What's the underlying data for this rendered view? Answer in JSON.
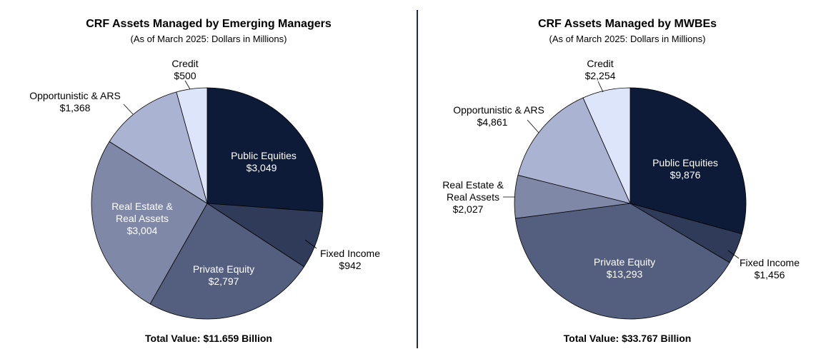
{
  "chart_data": [
    {
      "type": "pie",
      "title": "CRF Assets Managed by Emerging Managers",
      "subtitle": "(As of March 2025: Dollars in Millions)",
      "footer": "Total Value: $11.659 Billion",
      "slices": [
        {
          "name": "Public Equities",
          "label_value": "$3,049",
          "value": 3049,
          "color": "#0e1b38"
        },
        {
          "name": "Fixed Income",
          "label_value": "$942",
          "value": 942,
          "color": "#2f3b59"
        },
        {
          "name": "Private Equity",
          "label_value": "$2,797",
          "value": 2797,
          "color": "#545e7e"
        },
        {
          "name": "Real Estate & Real Assets",
          "label_value": "$3,004",
          "value": 3004,
          "color": "#7f88a6"
        },
        {
          "name": "Opportunistic & ARS",
          "label_value": "$1,368",
          "value": 1368,
          "color": "#aab3d1"
        },
        {
          "name": "Credit",
          "label_value": "$500",
          "value": 500,
          "color": "#dde5fb"
        }
      ]
    },
    {
      "type": "pie",
      "title": "CRF Assets Managed by MWBEs",
      "subtitle": "(As of March 2025: Dollars in Millions)",
      "footer": "Total Value: $33.767 Billion",
      "slices": [
        {
          "name": "Public Equities",
          "label_value": "$9,876",
          "value": 9876,
          "color": "#0e1b38"
        },
        {
          "name": "Fixed Income",
          "label_value": "$1,456",
          "value": 1456,
          "color": "#2f3b59"
        },
        {
          "name": "Private Equity",
          "label_value": "$13,293",
          "value": 13293,
          "color": "#545e7e"
        },
        {
          "name": "Real Estate & Real Assets",
          "label_value": "$2,027",
          "value": 2027,
          "color": "#7f88a6"
        },
        {
          "name": "Opportunistic & ARS",
          "label_value": "$4,861",
          "value": 4861,
          "color": "#aab3d1"
        },
        {
          "name": "Credit",
          "label_value": "$2,254",
          "value": 2254,
          "color": "#dde5fb"
        }
      ]
    }
  ]
}
